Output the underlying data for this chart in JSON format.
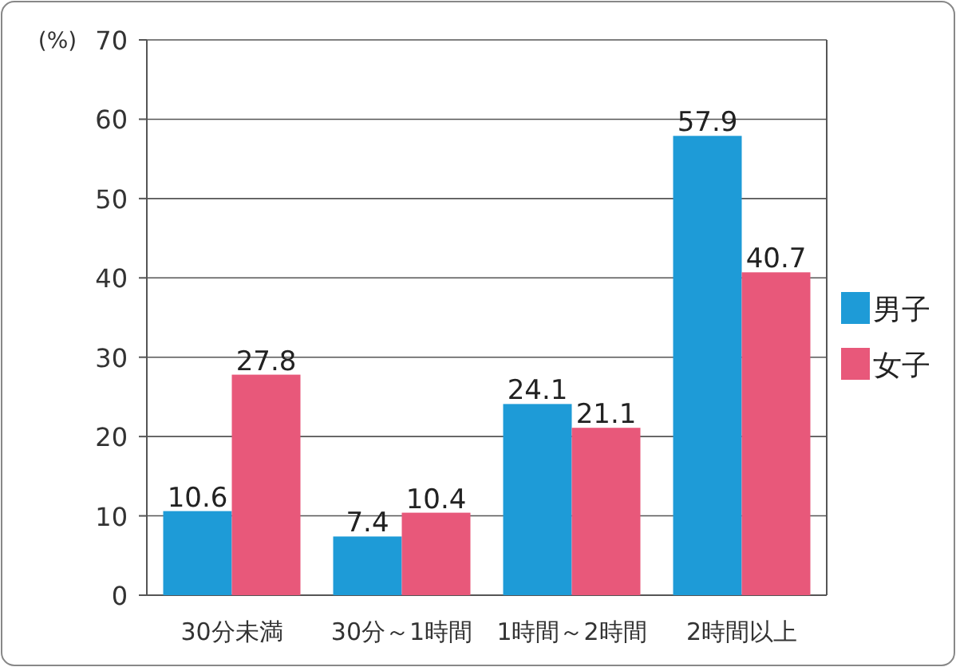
{
  "chart_data": {
    "type": "bar",
    "ylabel": "(%)",
    "categories": [
      "30分未満",
      "30分～1時間",
      "1時間～2時間",
      "2時間以上"
    ],
    "series": [
      {
        "name": "男子",
        "color": "#1e9bd7",
        "values": [
          10.6,
          7.4,
          24.1,
          57.9
        ]
      },
      {
        "name": "女子",
        "color": "#e8587a",
        "values": [
          27.8,
          10.4,
          21.1,
          40.7
        ]
      }
    ],
    "ylim": [
      0,
      70
    ],
    "yticks": [
      0,
      10,
      20,
      30,
      40,
      50,
      60,
      70
    ],
    "grid": "y",
    "data_labels": true,
    "legend": "right"
  }
}
